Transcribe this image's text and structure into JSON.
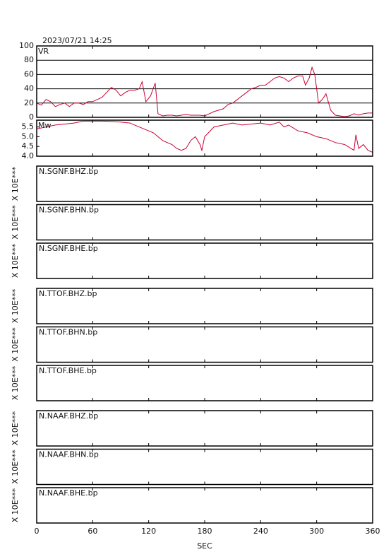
{
  "header": {
    "timestamp": "2023/07/21 14:25"
  },
  "chart_data": [
    {
      "type": "line",
      "title": "VR",
      "color": "#cc0033",
      "grid": true,
      "xlim": [
        0,
        360
      ],
      "ylim": [
        0,
        100
      ],
      "yticks": [
        0,
        20,
        40,
        60,
        80,
        100
      ],
      "x": [
        0,
        5,
        10,
        15,
        20,
        25,
        30,
        35,
        40,
        45,
        50,
        55,
        60,
        65,
        70,
        75,
        80,
        85,
        90,
        95,
        100,
        105,
        110,
        113,
        117,
        122,
        127,
        130,
        135,
        140,
        145,
        150,
        155,
        160,
        165,
        170,
        175,
        180,
        185,
        190,
        195,
        200,
        205,
        210,
        215,
        220,
        225,
        230,
        235,
        240,
        245,
        250,
        255,
        260,
        265,
        270,
        275,
        280,
        285,
        288,
        292,
        295,
        298,
        302,
        306,
        310,
        315,
        320,
        325,
        330,
        335,
        340,
        345,
        350,
        355,
        360
      ],
      "values": [
        20,
        17,
        25,
        22,
        15,
        18,
        20,
        15,
        20,
        20,
        18,
        22,
        22,
        25,
        28,
        35,
        42,
        38,
        30,
        35,
        38,
        38,
        40,
        50,
        22,
        30,
        48,
        5,
        2,
        3,
        3,
        2,
        3,
        4,
        3,
        3,
        3,
        2,
        5,
        8,
        10,
        12,
        18,
        20,
        25,
        30,
        35,
        40,
        42,
        45,
        45,
        50,
        55,
        57,
        55,
        50,
        55,
        58,
        58,
        45,
        55,
        70,
        60,
        20,
        25,
        33,
        10,
        3,
        2,
        1,
        2,
        5,
        3,
        5,
        6,
        6
      ]
    },
    {
      "type": "line",
      "title": "Mw",
      "color": "#cc0033",
      "grid": false,
      "xlim": [
        0,
        360
      ],
      "ylim": [
        4.0,
        5.85
      ],
      "yticks": [
        {
          "value": 4.0,
          "label": "4.0"
        },
        {
          "value": 4.5,
          "label": "4.5"
        },
        {
          "value": 5.0,
          "label": "5.0"
        },
        {
          "value": 5.5,
          "label": "5.5"
        }
      ],
      "x": [
        0,
        10,
        20,
        30,
        40,
        50,
        60,
        70,
        80,
        90,
        100,
        105,
        115,
        125,
        135,
        145,
        150,
        155,
        160,
        165,
        170,
        175,
        177,
        180,
        190,
        200,
        210,
        220,
        230,
        240,
        250,
        260,
        265,
        270,
        280,
        290,
        300,
        310,
        320,
        330,
        340,
        342,
        345,
        350,
        355,
        360
      ],
      "values": [
        5.4,
        5.5,
        5.6,
        5.65,
        5.7,
        5.8,
        5.8,
        5.8,
        5.78,
        5.75,
        5.7,
        5.6,
        5.4,
        5.2,
        4.8,
        4.6,
        4.4,
        4.3,
        4.4,
        4.8,
        5.0,
        4.6,
        4.3,
        5.0,
        5.5,
        5.6,
        5.7,
        5.6,
        5.65,
        5.7,
        5.6,
        5.75,
        5.5,
        5.6,
        5.3,
        5.2,
        5.0,
        4.9,
        4.7,
        4.6,
        4.3,
        5.1,
        4.4,
        4.6,
        4.3,
        4.2
      ]
    }
  ],
  "traces": {
    "names": [
      "N.SGNF.BHZ.bp",
      "N.SGNF.BHN.bp",
      "N.SGNF.BHE.bp",
      "N.TTOF.BHZ.bp",
      "N.TTOF.BHN.bp",
      "N.TTOF.BHE.bp",
      "N.NAAF.BHZ.bp",
      "N.NAAF.BHN.bp",
      "N.NAAF.BHE.bp"
    ],
    "scale_label": "X 10E***",
    "xlabel": "SEC",
    "xlim": [
      0,
      360
    ],
    "xticks": [
      0,
      60,
      120,
      180,
      240,
      300,
      360
    ]
  }
}
